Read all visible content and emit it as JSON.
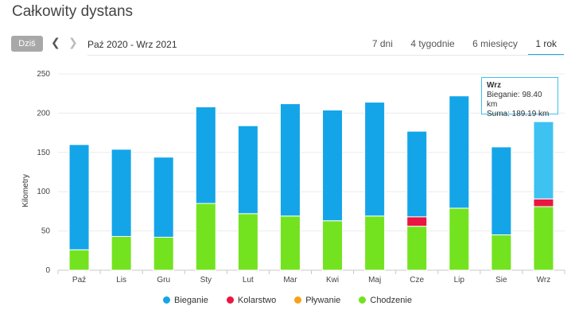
{
  "header": {
    "title": "Całkowity dystans"
  },
  "controls": {
    "today_label": "Dziś",
    "range_label": "Paź 2020 - Wrz 2021",
    "tabs": [
      {
        "label": "7 dni"
      },
      {
        "label": "4 tygodnie"
      },
      {
        "label": "6 miesięcy"
      },
      {
        "label": "1 rok"
      }
    ],
    "active_tab": "1 rok"
  },
  "tooltip": {
    "title": "Wrz",
    "line1": "Bieganie: 98.40 km",
    "line2": "Suma: 189.19 km"
  },
  "chart_data": {
    "type": "bar",
    "stacked": true,
    "categories": [
      "Paź",
      "Lis",
      "Gru",
      "Sty",
      "Lut",
      "Mar",
      "Kwi",
      "Maj",
      "Cze",
      "Lip",
      "Sie",
      "Wrz"
    ],
    "series": [
      {
        "name": "Chodzenie",
        "color": "#73e31f",
        "values": [
          26,
          43,
          42,
          85,
          72,
          69,
          63,
          69,
          56,
          79,
          45,
          81
        ]
      },
      {
        "name": "Pływanie",
        "color": "#f7a11a",
        "values": [
          0,
          0,
          0,
          0,
          0,
          0,
          0,
          0,
          0,
          0,
          0,
          0
        ]
      },
      {
        "name": "Kolarstwo",
        "color": "#ea1541",
        "values": [
          0,
          0,
          0,
          0,
          0,
          0,
          0,
          0,
          12,
          0,
          0,
          9.79
        ]
      },
      {
        "name": "Bieganie",
        "color": "#14a5e8",
        "values": [
          134,
          111,
          102,
          123,
          112,
          143,
          141,
          145,
          109,
          143,
          112,
          98.4
        ]
      }
    ],
    "highlight_color": "#3ec2f2",
    "highlight_index": 11,
    "ylabel": "Kilometry",
    "ylim": [
      0,
      250
    ],
    "yticks": [
      0,
      50,
      100,
      150,
      200,
      250
    ],
    "grid": true,
    "legend": {
      "position": "bottom",
      "items": [
        {
          "name": "Bieganie",
          "color": "#14a5e8"
        },
        {
          "name": "Kolarstwo",
          "color": "#ea1541"
        },
        {
          "name": "Pływanie",
          "color": "#f7a11a"
        },
        {
          "name": "Chodzenie",
          "color": "#73e31f"
        }
      ]
    }
  }
}
